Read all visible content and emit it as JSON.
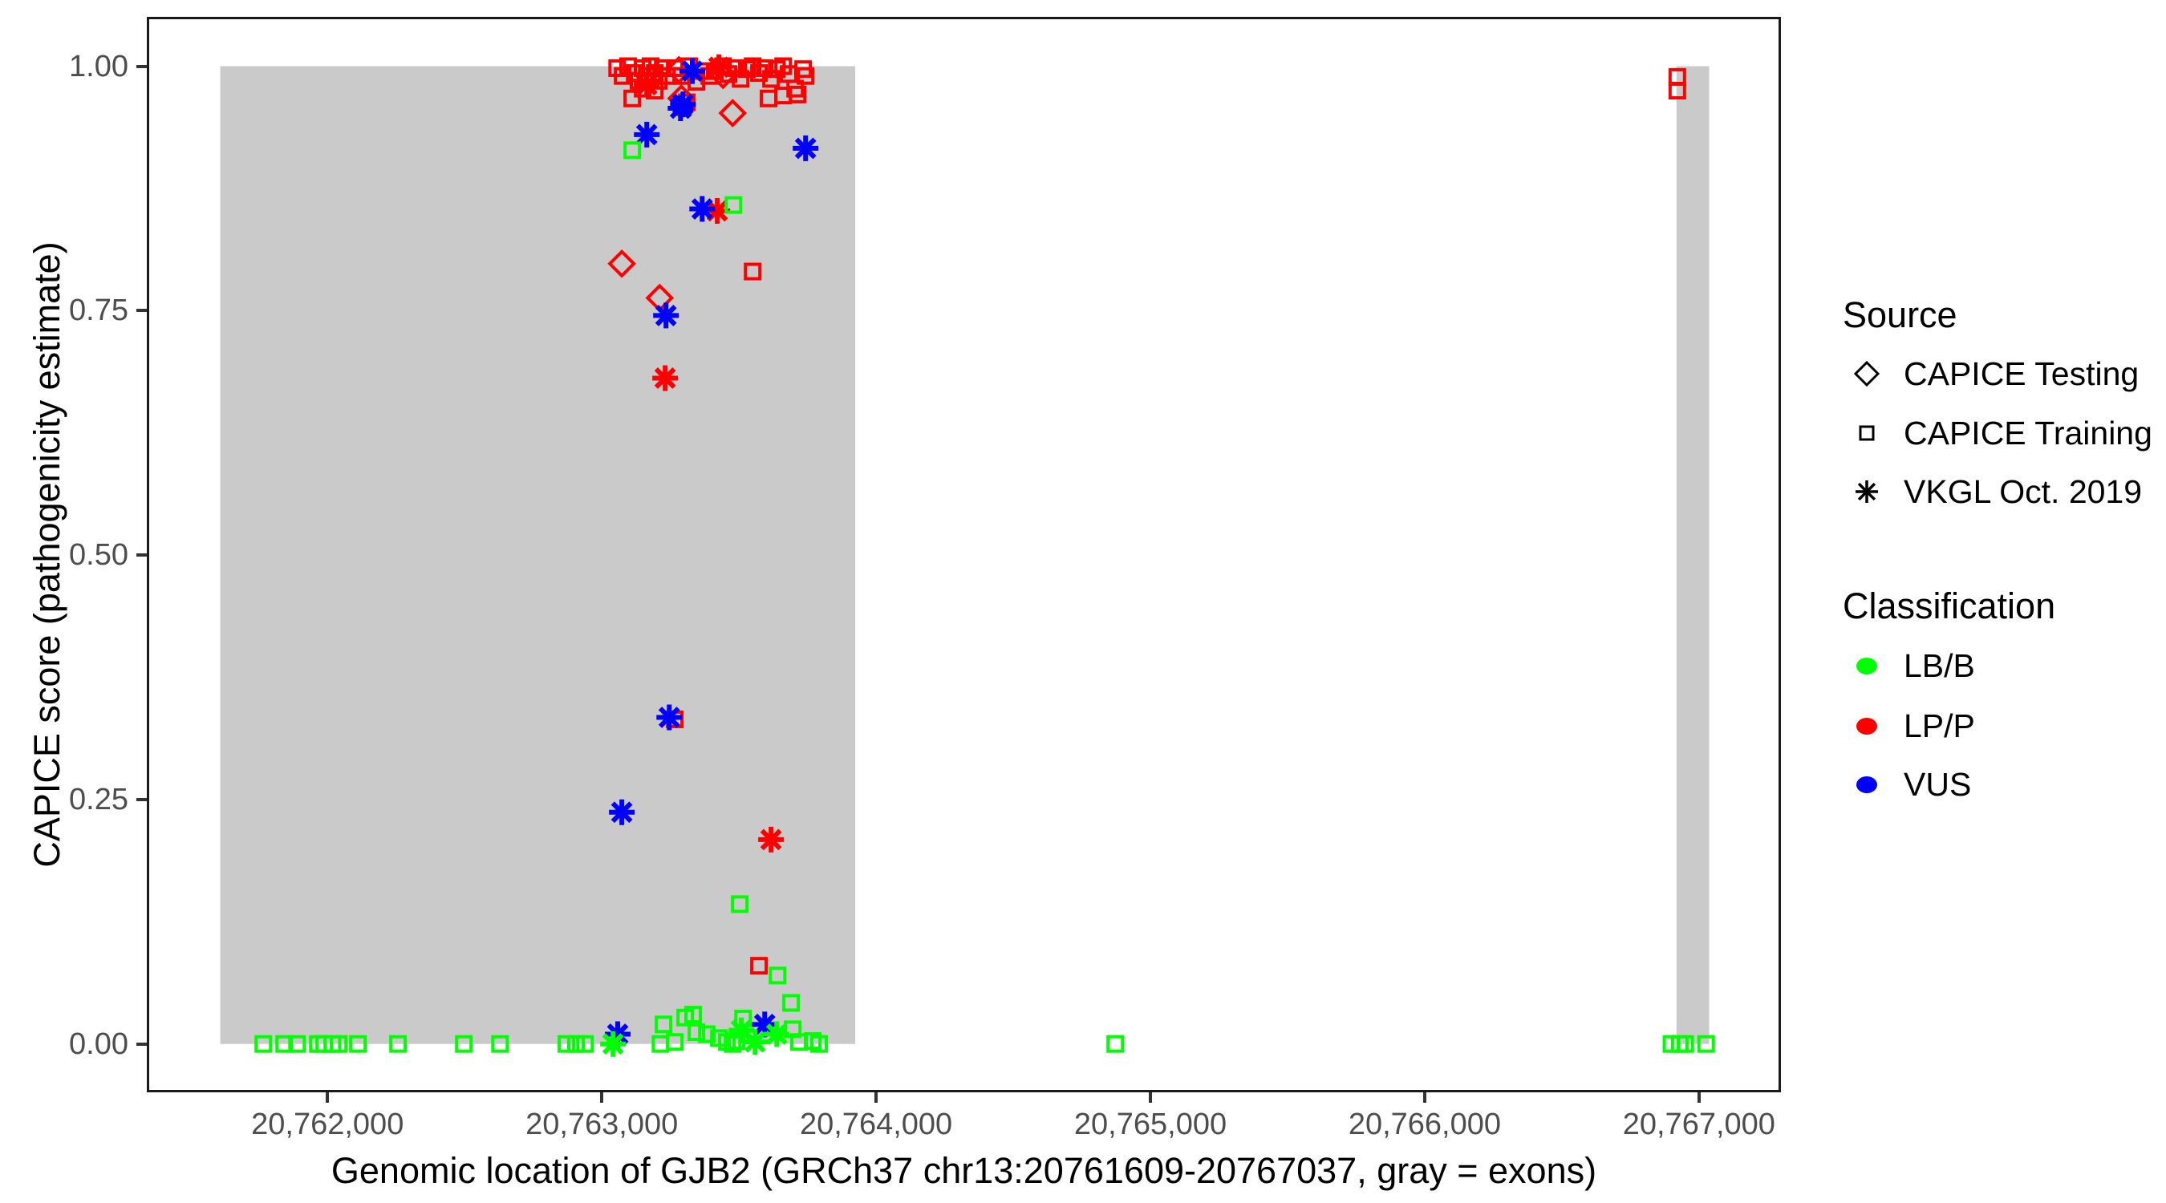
{
  "chart_data": {
    "type": "scatter",
    "xlabel": "Genomic location of GJB2 (GRCh37 chr13:20761609-20767037, gray = exons)",
    "ylabel": "CAPICE score (pathogenicity estimate)",
    "xlim": [
      20761350,
      20767290
    ],
    "ylim": [
      -0.047,
      1.048
    ],
    "grid": false,
    "x_ticks": [
      {
        "value": 20762000,
        "label": "20,762,000"
      },
      {
        "value": 20763000,
        "label": "20,763,000"
      },
      {
        "value": 20764000,
        "label": "20,764,000"
      },
      {
        "value": 20765000,
        "label": "20,765,000"
      },
      {
        "value": 20766000,
        "label": "20,766,000"
      },
      {
        "value": 20767000,
        "label": "20,767,000"
      }
    ],
    "y_ticks": [
      {
        "value": 0.0,
        "label": "0.00"
      },
      {
        "value": 0.25,
        "label": "0.25"
      },
      {
        "value": 0.5,
        "label": "0.50"
      },
      {
        "value": 0.75,
        "label": "0.75"
      },
      {
        "value": 1.0,
        "label": "1.00"
      }
    ],
    "exon_color": "#CACACA",
    "exon_regions": [
      {
        "start": 20761609,
        "end": 20763924
      },
      {
        "start": 20766918,
        "end": 20767037
      }
    ],
    "colors": {
      "LB/B": "#00FF00",
      "LP/P": "#FF0000",
      "VUS": "#0000FF"
    },
    "shapes": {
      "CAPICE Testing": "diamond",
      "CAPICE Training": "square",
      "VKGL Oct. 2019": "asterisk"
    },
    "points": [
      [
        20763056,
        0.998,
        "CAPICE Training",
        "LP/P"
      ],
      [
        20763076,
        0.99,
        "CAPICE Training",
        "LP/P"
      ],
      [
        20763096,
        1.0,
        "CAPICE Training",
        "LP/P"
      ],
      [
        20763120,
        0.993,
        "CAPICE Training",
        "LP/P"
      ],
      [
        20763134,
        0.985,
        "CAPICE Training",
        "LP/P"
      ],
      [
        20763149,
        0.998,
        "CAPICE Training",
        "LP/P"
      ],
      [
        20763164,
        0.99,
        "CAPICE Training",
        "LP/P"
      ],
      [
        20763178,
        1.0,
        "CAPICE Training",
        "LP/P"
      ],
      [
        20763193,
        0.993,
        "CAPICE Training",
        "LP/P"
      ],
      [
        20763208,
        0.985,
        "CAPICE Training",
        "LP/P"
      ],
      [
        20763222,
        0.998,
        "CAPICE Training",
        "LP/P"
      ],
      [
        20763111,
        0.967,
        "CAPICE Training",
        "LP/P"
      ],
      [
        20763149,
        0.977,
        "CAPICE Training",
        "LP/P"
      ],
      [
        20763193,
        0.975,
        "CAPICE Training",
        "LP/P"
      ],
      [
        20763237,
        0.99,
        "CAPICE Training",
        "LP/P"
      ],
      [
        20763266,
        0.998,
        "CAPICE Training",
        "LP/P"
      ],
      [
        20763290,
        0.99,
        "CAPICE Training",
        "LP/P"
      ],
      [
        20763319,
        1.0,
        "CAPICE Training",
        "LP/P"
      ],
      [
        20763345,
        0.984,
        "CAPICE Training",
        "LP/P"
      ],
      [
        20763369,
        0.995,
        "CAPICE Training",
        "LP/P"
      ],
      [
        20763392,
        0.99,
        "CAPICE Training",
        "LP/P"
      ],
      [
        20763310,
        0.963,
        "CAPICE Training",
        "LP/P"
      ],
      [
        20763412,
        0.995,
        "CAPICE Training",
        "LP/P"
      ],
      [
        20763442,
        1.0,
        "CAPICE Training",
        "LP/P"
      ],
      [
        20763462,
        0.992,
        "CAPICE Training",
        "LP/P"
      ],
      [
        20763486,
        0.998,
        "CAPICE Training",
        "LP/P"
      ],
      [
        20763506,
        0.987,
        "CAPICE Training",
        "LP/P"
      ],
      [
        20763529,
        0.997,
        "CAPICE Training",
        "LP/P"
      ],
      [
        20763550,
        1.0,
        "CAPICE Training",
        "LP/P"
      ],
      [
        20763573,
        0.993,
        "CAPICE Training",
        "LP/P"
      ],
      [
        20763594,
        0.998,
        "CAPICE Training",
        "LP/P"
      ],
      [
        20763617,
        0.987,
        "CAPICE Training",
        "LP/P"
      ],
      [
        20763638,
        0.997,
        "CAPICE Training",
        "LP/P"
      ],
      [
        20763661,
        1.0,
        "CAPICE Training",
        "LP/P"
      ],
      [
        20763681,
        0.992,
        "CAPICE Training",
        "LP/P"
      ],
      [
        20763705,
        0.977,
        "CAPICE Training",
        "LP/P"
      ],
      [
        20763714,
        0.971,
        "CAPICE Training",
        "LP/P"
      ],
      [
        20763608,
        0.967,
        "CAPICE Training",
        "LP/P"
      ],
      [
        20763661,
        0.97,
        "CAPICE Training",
        "LP/P"
      ],
      [
        20763734,
        0.997,
        "CAPICE Training",
        "LP/P"
      ],
      [
        20763743,
        0.99,
        "CAPICE Training",
        "LP/P"
      ],
      [
        20763296,
        0.958,
        "CAPICE Training",
        "LP/P"
      ],
      [
        20763550,
        0.79,
        "CAPICE Training",
        "LP/P"
      ],
      [
        20763266,
        0.332,
        "CAPICE Training",
        "LP/P"
      ],
      [
        20763573,
        0.08,
        "CAPICE Training",
        "LP/P"
      ],
      [
        20766921,
        0.989,
        "CAPICE Training",
        "LP/P"
      ],
      [
        20766921,
        0.975,
        "CAPICE Training",
        "LP/P"
      ],
      [
        20763281,
        0.996,
        "CAPICE Testing",
        "LP/P"
      ],
      [
        20763290,
        0.967,
        "CAPICE Testing",
        "LP/P"
      ],
      [
        20763442,
        0.991,
        "CAPICE Testing",
        "LP/P"
      ],
      [
        20763477,
        0.952,
        "CAPICE Testing",
        "LP/P"
      ],
      [
        20763073,
        0.798,
        "CAPICE Testing",
        "LP/P"
      ],
      [
        20763211,
        0.763,
        "CAPICE Testing",
        "LP/P"
      ],
      [
        20763164,
        0.981,
        "VKGL Oct. 2019",
        "LP/P"
      ],
      [
        20763427,
        0.999,
        "VKGL Oct. 2019",
        "LP/P"
      ],
      [
        20763421,
        0.852,
        "VKGL Oct. 2019",
        "LP/P"
      ],
      [
        20763231,
        0.681,
        "VKGL Oct. 2019",
        "LP/P"
      ],
      [
        20763617,
        0.209,
        "VKGL Oct. 2019",
        "LP/P"
      ],
      [
        20763330,
        0.995,
        "VKGL Oct. 2019",
        "VUS"
      ],
      [
        20763287,
        0.957,
        "VKGL Oct. 2019",
        "VUS"
      ],
      [
        20763296,
        0.961,
        "VKGL Oct. 2019",
        "VUS"
      ],
      [
        20763164,
        0.93,
        "VKGL Oct. 2019",
        "VUS"
      ],
      [
        20763743,
        0.916,
        "VKGL Oct. 2019",
        "VUS"
      ],
      [
        20763366,
        0.854,
        "VKGL Oct. 2019",
        "VUS"
      ],
      [
        20763234,
        0.745,
        "VKGL Oct. 2019",
        "VUS"
      ],
      [
        20763246,
        0.334,
        "VKGL Oct. 2019",
        "VUS"
      ],
      [
        20763073,
        0.237,
        "VKGL Oct. 2019",
        "VUS"
      ],
      [
        20763058,
        0.01,
        "VKGL Oct. 2019",
        "VUS"
      ],
      [
        20763594,
        0.02,
        "VKGL Oct. 2019",
        "VUS"
      ],
      [
        20763111,
        0.914,
        "CAPICE Training",
        "LB/B"
      ],
      [
        20763480,
        0.858,
        "CAPICE Training",
        "LB/B"
      ],
      [
        20763503,
        0.143,
        "CAPICE Training",
        "LB/B"
      ],
      [
        20763641,
        0.07,
        "CAPICE Training",
        "LB/B"
      ],
      [
        20763690,
        0.042,
        "CAPICE Training",
        "LB/B"
      ],
      [
        20763333,
        0.03,
        "CAPICE Training",
        "LB/B"
      ],
      [
        20763304,
        0.027,
        "CAPICE Training",
        "LB/B"
      ],
      [
        20763515,
        0.026,
        "CAPICE Training",
        "LB/B"
      ],
      [
        20763225,
        0.02,
        "CAPICE Training",
        "LB/B"
      ],
      [
        20763696,
        0.015,
        "CAPICE Training",
        "LB/B"
      ],
      [
        20763345,
        0.012,
        "CAPICE Training",
        "LB/B"
      ],
      [
        20763383,
        0.01,
        "CAPICE Training",
        "LB/B"
      ],
      [
        20763427,
        0.006,
        "CAPICE Training",
        "LB/B"
      ],
      [
        20763491,
        0.003,
        "CAPICE Training",
        "LB/B"
      ],
      [
        20763769,
        0.003,
        "CAPICE Training",
        "LB/B"
      ],
      [
        20763456,
        0.002,
        "CAPICE Training",
        "LB/B"
      ],
      [
        20763266,
        0.002,
        "CAPICE Training",
        "LB/B"
      ],
      [
        20763719,
        0.002,
        "CAPICE Training",
        "LB/B"
      ],
      [
        20763214,
        0.0,
        "CAPICE Training",
        "LB/B"
      ],
      [
        20763477,
        0.0,
        "CAPICE Training",
        "LB/B"
      ],
      [
        20763792,
        0.0,
        "CAPICE Training",
        "LB/B"
      ],
      [
        20761766,
        0.0,
        "CAPICE Training",
        "LB/B"
      ],
      [
        20761842,
        0.0,
        "CAPICE Training",
        "LB/B"
      ],
      [
        20761889,
        0.0,
        "CAPICE Training",
        "LB/B"
      ],
      [
        20761965,
        0.0,
        "CAPICE Training",
        "LB/B"
      ],
      [
        20761988,
        0.0,
        "CAPICE Training",
        "LB/B"
      ],
      [
        20762018,
        0.0,
        "CAPICE Training",
        "LB/B"
      ],
      [
        20762041,
        0.0,
        "CAPICE Training",
        "LB/B"
      ],
      [
        20762111,
        0.0,
        "CAPICE Training",
        "LB/B"
      ],
      [
        20762257,
        0.0,
        "CAPICE Training",
        "LB/B"
      ],
      [
        20762497,
        0.0,
        "CAPICE Training",
        "LB/B"
      ],
      [
        20762629,
        0.0,
        "CAPICE Training",
        "LB/B"
      ],
      [
        20762871,
        0.0,
        "CAPICE Training",
        "LB/B"
      ],
      [
        20762906,
        0.0,
        "CAPICE Training",
        "LB/B"
      ],
      [
        20762939,
        0.0,
        "CAPICE Training",
        "LB/B"
      ],
      [
        20764872,
        0.0,
        "CAPICE Training",
        "LB/B"
      ],
      [
        20766900,
        0.0,
        "CAPICE Training",
        "LB/B"
      ],
      [
        20766930,
        0.0,
        "CAPICE Training",
        "LB/B"
      ],
      [
        20766950,
        0.0,
        "CAPICE Training",
        "LB/B"
      ],
      [
        20767026,
        0.0,
        "CAPICE Training",
        "LB/B"
      ],
      [
        20763041,
        0.0,
        "VKGL Oct. 2019",
        "LB/B"
      ],
      [
        20763509,
        0.014,
        "VKGL Oct. 2019",
        "LB/B"
      ],
      [
        20763559,
        0.002,
        "VKGL Oct. 2019",
        "LB/B"
      ],
      [
        20763638,
        0.01,
        "VKGL Oct. 2019",
        "LB/B"
      ]
    ]
  },
  "legend": {
    "source": {
      "title": "Source",
      "items": [
        {
          "label": "CAPICE Testing",
          "shape": "diamond"
        },
        {
          "label": "CAPICE Training",
          "shape": "square"
        },
        {
          "label": "VKGL Oct. 2019",
          "shape": "asterisk"
        }
      ]
    },
    "classification": {
      "title": "Classification",
      "items": [
        {
          "label": "LB/B",
          "color": "#00FF00"
        },
        {
          "label": "LP/P",
          "color": "#FF0000"
        },
        {
          "label": "VUS",
          "color": "#0000FF"
        }
      ]
    }
  }
}
